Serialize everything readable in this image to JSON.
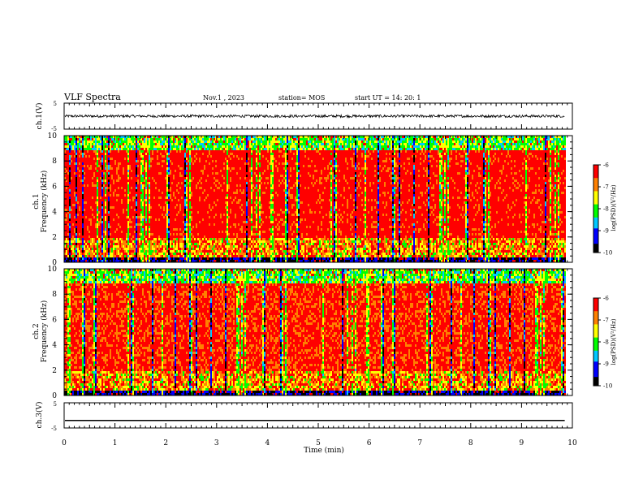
{
  "header": {
    "title": "VLF Spectra",
    "date": "Nov.1 , 2023",
    "station": "station= MOS",
    "start": "start UT = 14: 20: 1"
  },
  "chart_data": [
    {
      "type": "line",
      "id": "ch1-waveform",
      "ylabel": "ch.1(V)",
      "ylim": [
        -5,
        5
      ],
      "yticks": [
        "5",
        "-5"
      ],
      "xlim": [
        0,
        10
      ],
      "series": [
        {
          "values_description_level": 0.0,
          "amplitude": 0.5,
          "x_end": 9.85
        }
      ]
    },
    {
      "type": "heatmap",
      "id": "ch1-spectrogram",
      "panel_label": "ch.1",
      "ylabel": "Frequency (kHz)",
      "ylim": [
        0,
        10
      ],
      "yticks": [
        "0",
        "2",
        "4",
        "6",
        "8",
        "10"
      ],
      "xlim": [
        0,
        10
      ],
      "x_end": 9.85,
      "colorbar": {
        "label": "log(PSD)(V²/Hz)",
        "ticks": [
          "-6",
          "-7",
          "-8",
          "-9",
          "-10"
        ],
        "range": [
          -10,
          -6
        ]
      }
    },
    {
      "type": "heatmap",
      "id": "ch2-spectrogram",
      "panel_label": "ch.2",
      "ylabel": "Frequency (kHz)",
      "ylim": [
        0,
        10
      ],
      "yticks": [
        "0",
        "2",
        "4",
        "6",
        "8",
        "10"
      ],
      "xlim": [
        0,
        10
      ],
      "x_end": 9.85,
      "colorbar": {
        "label": "log(PSD)(V²/Hz)",
        "ticks": [
          "-6",
          "-7",
          "-8",
          "-9",
          "-10"
        ],
        "range": [
          -10,
          -6
        ]
      }
    },
    {
      "type": "line",
      "id": "ch3-waveform",
      "ylabel": "ch.3(V)",
      "ylim": [
        -5,
        5
      ],
      "yticks": [
        "5",
        "-5"
      ],
      "xlim": [
        0,
        10
      ],
      "series": [
        {
          "values_description_level": -2.0,
          "amplitude": 0.0,
          "x_end": 9.85
        }
      ]
    }
  ],
  "xaxis": {
    "label": "Time (min)",
    "ticks": [
      "0",
      "1",
      "2",
      "3",
      "4",
      "5",
      "6",
      "7",
      "8",
      "9",
      "10"
    ]
  },
  "colors": {
    "colormap": [
      "#000000",
      "#0000ff",
      "#00c8ff",
      "#00ff00",
      "#ffff00",
      "#ff8000",
      "#ff0000",
      "#ffffff"
    ]
  }
}
